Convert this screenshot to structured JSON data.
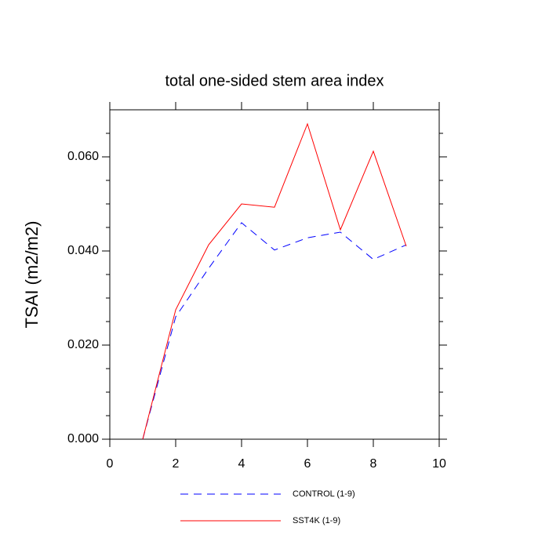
{
  "chart_data": {
    "type": "line",
    "title": "total one-sided stem area index",
    "y_label": "TSAI  (m2/m2)",
    "x": [
      1,
      2,
      3,
      4,
      5,
      6,
      7,
      8,
      9
    ],
    "series": [
      {
        "name": "CONTROL (1-9)",
        "color": "#0000ff",
        "dash": true,
        "values": [
          0.0,
          0.026,
          0.0363,
          0.046,
          0.0402,
          0.0428,
          0.044,
          0.0382,
          0.0413
        ]
      },
      {
        "name": "SST4K (1-9)",
        "color": "#ff0000",
        "dash": false,
        "values": [
          0.0,
          0.0275,
          0.0413,
          0.05,
          0.0493,
          0.067,
          0.0445,
          0.0612,
          0.041
        ]
      }
    ],
    "xlim": [
      0,
      10
    ],
    "xticks": [
      0,
      2,
      4,
      6,
      8,
      10
    ],
    "ylim": [
      0,
      0.07
    ],
    "yticks": [
      {
        "value": 0,
        "label": "0.000"
      },
      {
        "value": 0.02,
        "label": "0.020"
      },
      {
        "value": 0.04,
        "label": "0.040"
      },
      {
        "value": 0.06,
        "label": "0.060"
      }
    ],
    "yminorticks": [
      0.005,
      0.01,
      0.015,
      0.025,
      0.03,
      0.035,
      0.045,
      0.05,
      0.055,
      0.065
    ],
    "legend": "bottom"
  }
}
